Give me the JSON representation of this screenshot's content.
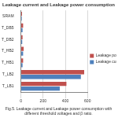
{
  "chart_data": {
    "type": "bar",
    "orientation": "horizontal",
    "title": "Leakage current and Leakage power consumption",
    "subtitle": [
      "Fig.5. Leakage current and Leakage power consumption with",
      "different threshold voltages and β ratio."
    ],
    "categories": [
      "SRAM",
      "T_DB5",
      "T_DB2",
      "T_HB2",
      "T_HB1",
      "T_LB2",
      "T_LB1"
    ],
    "series": [
      {
        "name": "Leakage power consumption",
        "color": "#c0504d",
        "values": [
          10,
          20,
          15,
          25,
          20,
          570,
          410
        ]
      },
      {
        "name": "Leakage current",
        "color": "#4f81bd",
        "values": [
          8,
          15,
          12,
          20,
          15,
          540,
          350
        ]
      }
    ],
    "xlim": [
      0,
      600
    ],
    "xticks": [
      0,
      200,
      400,
      600
    ],
    "grid": true,
    "legend": "right"
  }
}
